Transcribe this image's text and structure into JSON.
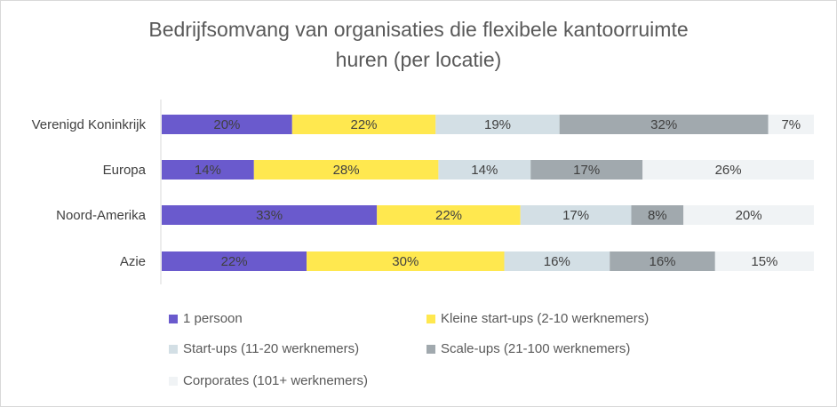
{
  "chart_data": {
    "type": "bar",
    "orientation": "horizontal",
    "stacked": true,
    "title_lines": [
      "Bedrijfsomvang van organisaties die flexibele kantoorruimte",
      "huren (per locatie)"
    ],
    "categories": [
      "Verenigd Koninkrijk",
      "Europa",
      "Noord-Amerika",
      "Azie"
    ],
    "series": [
      {
        "name": "1 persoon",
        "color": "#6a5acd",
        "values": [
          20,
          14,
          33,
          22
        ]
      },
      {
        "name": "Kleine start-ups (2-10 werknemers)",
        "color": "#ffe84f",
        "values": [
          22,
          28,
          22,
          30
        ]
      },
      {
        "name": "Start-ups (11-20 werknemers)",
        "color": "#d3dfe5",
        "values": [
          19,
          14,
          17,
          16
        ]
      },
      {
        "name": "Scale-ups (21-100 werknemers)",
        "color": "#a1a9ae",
        "values": [
          32,
          17,
          8,
          16
        ]
      },
      {
        "name": "Corporates (101+ werknemers)",
        "color": "#f0f3f5",
        "values": [
          7,
          26,
          20,
          15
        ]
      }
    ],
    "value_suffix": "%",
    "xlim": [
      0,
      100
    ],
    "grid": false,
    "legend_position": "bottom"
  }
}
